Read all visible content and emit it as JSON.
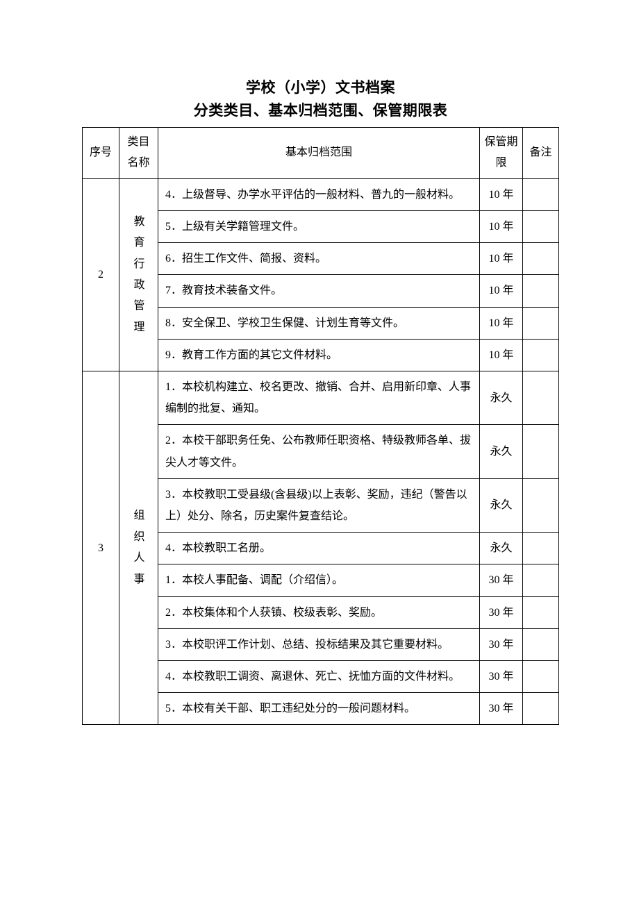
{
  "title": {
    "line1": "学校（小学）文书档案",
    "line2": "分类类目、基本归档范围、保管期限表"
  },
  "columns": {
    "seq": "序号",
    "category": "类目名称",
    "desc": "基本归档范围",
    "retention": "保管期限",
    "note": "备注"
  },
  "groups": [
    {
      "seq": "2",
      "category": "教育行政管理",
      "rows": [
        {
          "desc": "4．上级督导、办学水平评估的一般材料、普九的一般材料。",
          "retention": "10 年",
          "note": ""
        },
        {
          "desc": "5．上级有关学籍管理文件。",
          "retention": "10 年",
          "note": ""
        },
        {
          "desc": "6．招生工作文件、简报、资料。",
          "retention": "10 年",
          "note": ""
        },
        {
          "desc": "7．教育技术装备文件。",
          "retention": "10 年",
          "note": ""
        },
        {
          "desc": "8．安全保卫、学校卫生保健、计划生育等文件。",
          "retention": "10 年",
          "note": ""
        },
        {
          "desc": "9．教育工作方面的其它文件材料。",
          "retention": "10 年",
          "note": ""
        }
      ]
    },
    {
      "seq": "3",
      "category": "组织人事",
      "rows": [
        {
          "desc": "1．本校机构建立、校名更改、撤销、合并、启用新印章、人事编制的批复、通知。",
          "retention": "永久",
          "note": ""
        },
        {
          "desc": "2．本校干部职务任免、公布教师任职资格、特级教师各单、拔尖人才等文件。",
          "retention": "永久",
          "note": ""
        },
        {
          "desc": "3．本校教职工受县级(含县级)以上表彰、奖励，违纪（警告以上）处分、除名，历史案件复查结论。",
          "retention": "永久",
          "note": ""
        },
        {
          "desc": "4．本校教职工名册。",
          "retention": "永久",
          "note": ""
        },
        {
          "desc": "1．本校人事配备、调配（介绍信）。",
          "retention": "30 年",
          "note": ""
        },
        {
          "desc": "2．本校集体和个人获镇、校级表彰、奖励。",
          "retention": "30 年",
          "note": ""
        },
        {
          "desc": "3．本校职评工作计划、总结、投标结果及其它重要材料。",
          "retention": "30 年",
          "note": ""
        },
        {
          "desc": "4．本校教职工调资、离退休、死亡、抚恤方面的文件材料。",
          "retention": "30 年",
          "note": ""
        },
        {
          "desc": "5．本校有关干部、职工违纪处分的一般问题材料。",
          "retention": "30 年",
          "note": ""
        }
      ]
    }
  ],
  "style": {
    "background_color": "#ffffff",
    "text_color": "#000000",
    "border_color": "#000000",
    "title_fontsize": 21,
    "body_fontsize": 16,
    "font_family": "SimSun"
  }
}
